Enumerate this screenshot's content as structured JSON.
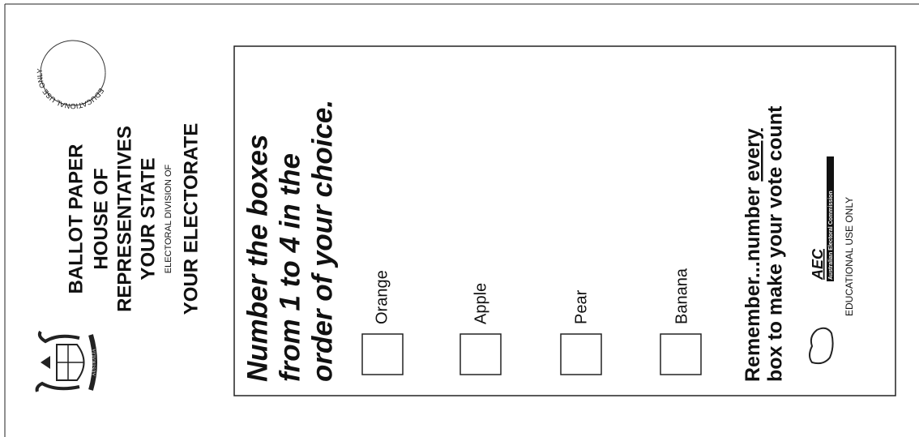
{
  "stamp": {
    "text": "EDUCATIONAL USE ONLY"
  },
  "coat_of_arms": {
    "label": "AUSTRALIA"
  },
  "header": {
    "lines": [
      "BALLOT PAPER",
      "HOUSE OF",
      "REPRESENTATIVES",
      "YOUR STATE"
    ],
    "division_label": "ELECTORAL DIVISION OF",
    "electorate": "YOUR ELECTORATE"
  },
  "instructions": {
    "lines": [
      "Number the boxes",
      "from 1 to 4 in the",
      "order of your choice."
    ]
  },
  "candidates": [
    "Orange",
    "Apple",
    "Pear",
    "Banana"
  ],
  "footer": {
    "line1_prefix": "Remember...number",
    "line1_emphasis": "every",
    "line2": "box to make your vote count"
  },
  "logo": {
    "acronym": "AEC",
    "name": "Australian Electoral Commission",
    "note": "EDUCATIONAL USE ONLY"
  }
}
